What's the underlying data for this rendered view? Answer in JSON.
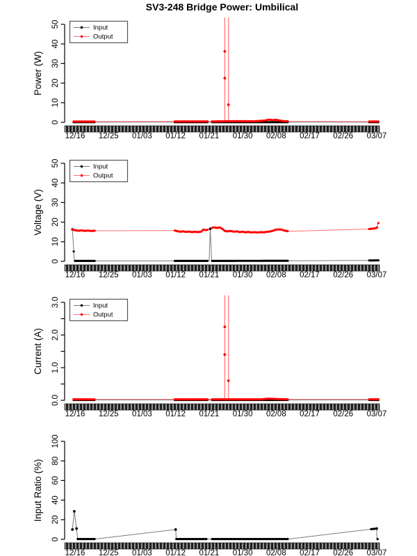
{
  "title": "SV3-248 Bridge Power: Umbilical",
  "colors": {
    "input_point": "#000000",
    "input_line": "#7a7a7a",
    "output_point": "#ff0000",
    "output_line": "#ff7070",
    "spike_line": "#ff6b6b",
    "axis": "#000000",
    "ylabel_text": "#333333",
    "band_dark": "#1f1f1f",
    "band_light": "#949494",
    "legend_border": "#555555",
    "legend_fill": "#ffffff"
  },
  "legend": {
    "entries": [
      {
        "label": "Input"
      },
      {
        "label": "Output"
      }
    ]
  },
  "x_axis": {
    "tick_labels": [
      "12/16",
      "12/25",
      "01/03",
      "01/12",
      "01/21",
      "01/30",
      "02/08",
      "02/17",
      "02/26",
      "03/07"
    ],
    "tick_days": [
      0,
      9,
      18,
      27,
      36,
      45,
      54,
      63,
      72,
      81
    ]
  },
  "chart_data": {
    "note": "see charts[] — days are offsets from 12/16",
    "type": "line"
  },
  "charts": [
    {
      "id": "power",
      "type": "line",
      "ylabel": "Power (W)",
      "ytick_values": [
        0,
        10,
        20,
        30,
        40,
        50
      ],
      "ytick_labels": [
        "0",
        "10",
        "20",
        "30",
        "40",
        "50"
      ],
      "minor_ticks": [],
      "ymax_tick": 50,
      "show_legend": true,
      "series": [
        {
          "name": "Input",
          "role": "input",
          "path": [
            [
              -0.4,
              0.07
            ],
            [
              81.5,
              0.07
            ]
          ],
          "dense": [
            [
              -0.4,
              5.4
            ],
            [
              26.8,
              35.6
            ],
            [
              36.8,
              57.3
            ],
            [
              79,
              81.5
            ]
          ],
          "dots": []
        },
        {
          "name": "Output",
          "role": "output",
          "path": [
            [
              -0.4,
              0.4
            ],
            [
              5.4,
              0.4
            ],
            [
              26.8,
              0.45
            ],
            [
              35.6,
              0.45
            ],
            [
              36.8,
              0.45
            ],
            [
              44,
              0.6
            ],
            [
              48,
              0.5
            ],
            [
              51,
              0.9
            ],
            [
              52,
              1.4
            ],
            [
              53,
              1.1
            ],
            [
              54,
              1.3
            ],
            [
              55,
              0.9
            ],
            [
              56,
              0.6
            ],
            [
              57.3,
              0.5
            ],
            [
              79,
              0.4
            ],
            [
              81.5,
              0.4
            ]
          ],
          "dense": [
            [
              -0.4,
              5.4
            ],
            [
              26.8,
              35.6
            ],
            [
              36.8,
              57.3
            ],
            [
              79,
              81.5
            ]
          ],
          "dots": []
        }
      ],
      "spikes": [
        {
          "day": 40.2,
          "dot_values": [
            22.5,
            36.2
          ]
        },
        {
          "day": 41.2,
          "dot_values": [
            9
          ]
        }
      ]
    },
    {
      "id": "voltage",
      "type": "line",
      "ylabel": "Voltage (V)",
      "ytick_values": [
        0,
        10,
        20,
        30,
        40,
        50
      ],
      "ytick_labels": [
        "0",
        "10",
        "20",
        "30",
        "40",
        "50"
      ],
      "minor_ticks": [],
      "ymax_tick": 50,
      "show_legend": true,
      "series": [
        {
          "name": "Input",
          "role": "input",
          "path": [
            [
              -0.7,
              16.3
            ],
            [
              -0.2,
              0.2
            ],
            [
              5.4,
              0.2
            ],
            [
              26.8,
              0.2
            ],
            [
              36.0,
              0.2
            ],
            [
              36.3,
              16.6
            ],
            [
              36.7,
              0.2
            ],
            [
              57.3,
              0.3
            ],
            [
              79,
              0.45
            ],
            [
              81.5,
              0.5
            ]
          ],
          "dense": [
            [
              -0.7,
              5.4
            ],
            [
              26.8,
              35.6
            ],
            [
              36.8,
              57.3
            ],
            [
              79,
              81.5
            ]
          ],
          "dots": [
            [
              -0.7,
              16.3
            ],
            [
              36.3,
              16.6
            ]
          ]
        },
        {
          "name": "Output",
          "role": "output",
          "path": [
            [
              -0.7,
              16.4
            ],
            [
              0,
              15.8
            ],
            [
              1,
              15.6
            ],
            [
              1.8,
              15.8
            ],
            [
              2.6,
              15.5
            ],
            [
              3.4,
              15.7
            ],
            [
              4.2,
              15.5
            ],
            [
              5.4,
              15.6
            ],
            [
              26.8,
              15.7
            ],
            [
              27.5,
              15.4
            ],
            [
              28.2,
              15.1
            ],
            [
              29,
              15.3
            ],
            [
              29.8,
              15.0
            ],
            [
              30.6,
              15.2
            ],
            [
              31.4,
              14.9
            ],
            [
              32.2,
              15.1
            ],
            [
              33,
              14.9
            ],
            [
              33.8,
              15.1
            ],
            [
              34.5,
              16.2
            ],
            [
              35.0,
              15.9
            ],
            [
              35.6,
              16.1
            ],
            [
              36.8,
              17.1
            ],
            [
              37.4,
              17.4
            ],
            [
              38.1,
              17.0
            ],
            [
              38.8,
              17.3
            ],
            [
              39.4,
              16.8
            ],
            [
              40.2,
              15.5
            ],
            [
              41,
              15.3
            ],
            [
              41.8,
              15.5
            ],
            [
              42.6,
              15.1
            ],
            [
              43.4,
              15.3
            ],
            [
              44.2,
              14.9
            ],
            [
              45,
              15.1
            ],
            [
              45.8,
              14.8
            ],
            [
              46.6,
              15.0
            ],
            [
              47.4,
              14.7
            ],
            [
              48.2,
              14.9
            ],
            [
              49,
              14.7
            ],
            [
              49.8,
              14.9
            ],
            [
              50.6,
              14.8
            ],
            [
              51.4,
              15.0
            ],
            [
              52.2,
              15.2
            ],
            [
              53,
              15.5
            ],
            [
              53.8,
              16.1
            ],
            [
              54.6,
              16.3
            ],
            [
              55.4,
              16.2
            ],
            [
              56.2,
              15.7
            ],
            [
              57.3,
              15.3
            ],
            [
              79,
              16.5
            ],
            [
              80,
              16.7
            ],
            [
              80.7,
              16.9
            ],
            [
              81.1,
              17.3
            ],
            [
              81.3,
              19.2
            ],
            [
              81.5,
              19.6
            ]
          ],
          "dense": [
            [
              -0.7,
              5.4
            ],
            [
              26.8,
              35.6
            ],
            [
              36.8,
              57.3
            ],
            [
              79,
              81.5
            ]
          ],
          "dots": []
        }
      ],
      "spikes": []
    },
    {
      "id": "current",
      "type": "line",
      "ylabel": "Current (A)",
      "ytick_values": [
        0,
        1,
        2,
        3
      ],
      "ytick_labels": [
        "0.0",
        "1.0",
        "2.0",
        "3.0"
      ],
      "minor_ticks": [
        0.5,
        1.5,
        2.5
      ],
      "ymax_tick": 3,
      "show_legend": true,
      "series": [
        {
          "name": "Input",
          "role": "input",
          "path": [
            [
              -0.4,
              0.01
            ],
            [
              81.5,
              0.01
            ]
          ],
          "dense": [
            [
              -0.4,
              5.4
            ],
            [
              26.8,
              35.6
            ],
            [
              36.8,
              57.3
            ],
            [
              79,
              81.5
            ]
          ],
          "dots": []
        },
        {
          "name": "Output",
          "role": "output",
          "path": [
            [
              -0.4,
              0.03
            ],
            [
              50,
              0.03
            ],
            [
              52,
              0.05
            ],
            [
              54,
              0.04
            ],
            [
              57.3,
              0.03
            ],
            [
              81.5,
              0.03
            ]
          ],
          "dense": [
            [
              -0.4,
              5.4
            ],
            [
              26.8,
              35.6
            ],
            [
              36.8,
              57.3
            ],
            [
              79,
              81.5
            ]
          ],
          "dots": []
        }
      ],
      "spikes": [
        {
          "day": 40.2,
          "dot_values": [
            1.4,
            2.25
          ]
        },
        {
          "day": 41.2,
          "dot_values": [
            0.6
          ]
        }
      ]
    },
    {
      "id": "input_ratio",
      "type": "line",
      "ylabel": "Input Ratio (%)",
      "ytick_values": [
        0,
        20,
        40,
        60,
        80,
        100
      ],
      "ytick_labels": [
        "0",
        "20",
        "40",
        "60",
        "80",
        "100"
      ],
      "minor_ticks": [],
      "ymax_tick": 100,
      "show_legend": false,
      "series": [
        {
          "name": "Input",
          "role": "input",
          "path": [
            [
              -0.7,
              10
            ],
            [
              -0.2,
              28.5
            ],
            [
              0.4,
              11
            ],
            [
              0.7,
              0.3
            ],
            [
              5.4,
              0.3
            ],
            [
              27,
              10
            ],
            [
              27.2,
              0.3
            ],
            [
              35.6,
              0.3
            ],
            [
              36.8,
              0.3
            ],
            [
              57.3,
              0.3
            ],
            [
              81,
              11
            ],
            [
              81.05,
              0.3
            ],
            [
              81.5,
              0.3
            ]
          ],
          "dense": [
            [
              0.7,
              5.4
            ],
            [
              27.2,
              35.6
            ],
            [
              36.8,
              57.3
            ],
            [
              79.5,
              81.5
            ]
          ],
          "dots": [
            [
              -0.7,
              10
            ],
            [
              -0.2,
              28.5
            ],
            [
              0.4,
              11
            ],
            [
              27,
              10
            ],
            [
              81,
              11
            ]
          ]
        }
      ],
      "spikes": []
    }
  ]
}
